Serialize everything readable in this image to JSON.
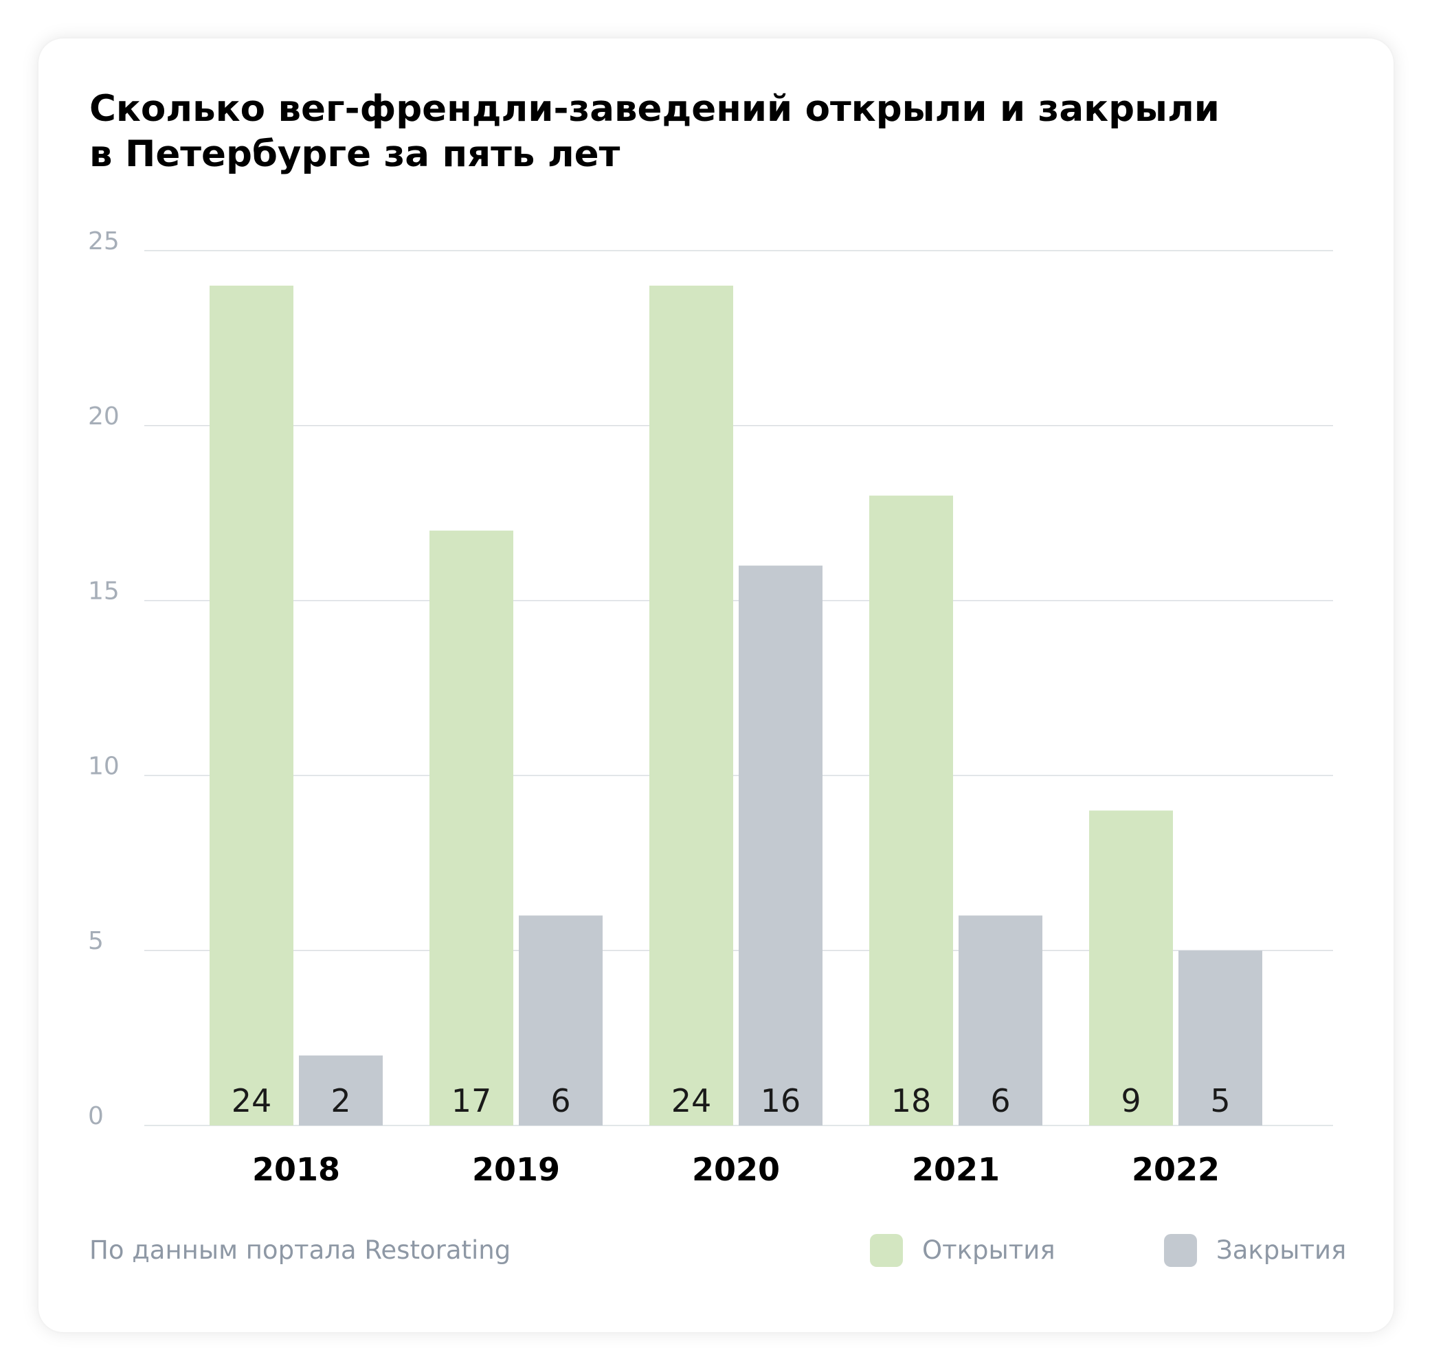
{
  "chart_data": {
    "type": "bar",
    "title": "Сколько вег-френдли-заведений открыли и закрыли\nв Петербурге за пять лет",
    "categories": [
      "2018",
      "2019",
      "2020",
      "2021",
      "2022"
    ],
    "series": [
      {
        "name": "Открытия",
        "values": [
          24,
          17,
          24,
          18,
          9
        ],
        "color": "#d3e6c1"
      },
      {
        "name": "Закрытия",
        "values": [
          2,
          6,
          16,
          6,
          5
        ],
        "color": "#c3c9d0"
      }
    ],
    "ylim": [
      0,
      25
    ],
    "yticks": [
      0,
      5,
      10,
      15,
      20,
      25
    ],
    "xlabel": "",
    "ylabel": "",
    "grid": true,
    "legend_position": "bottom-right",
    "data_labels": "inside-bottom",
    "source": "По данным портала Restorating"
  },
  "colors": {
    "grid": "#d9dde1",
    "tick_label": "#a6aeb8",
    "data_label": "#1a1a1a",
    "category_label": "#000000"
  }
}
